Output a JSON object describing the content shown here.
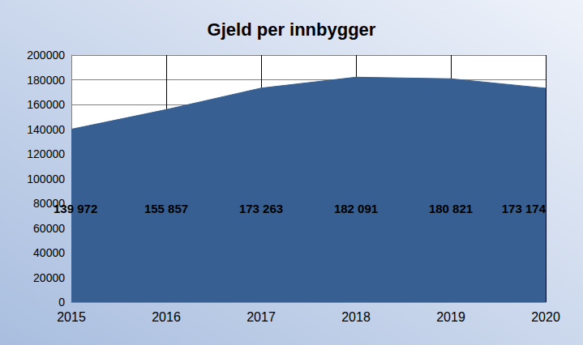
{
  "chart_data": {
    "type": "area",
    "title": "Gjeld per innbygger",
    "categories": [
      "2015",
      "2016",
      "2017",
      "2018",
      "2019",
      "2020"
    ],
    "values": [
      139972,
      155857,
      173263,
      182091,
      180821,
      173174
    ],
    "value_labels": [
      "139 972",
      "155 857",
      "173 263",
      "182 091",
      "180 821",
      "173 174"
    ],
    "color": "#375f91",
    "ylim": [
      0,
      200000
    ],
    "yticks": [
      0,
      20000,
      40000,
      60000,
      80000,
      100000,
      120000,
      140000,
      160000,
      180000,
      200000
    ],
    "grid": true,
    "data_labels": true
  }
}
